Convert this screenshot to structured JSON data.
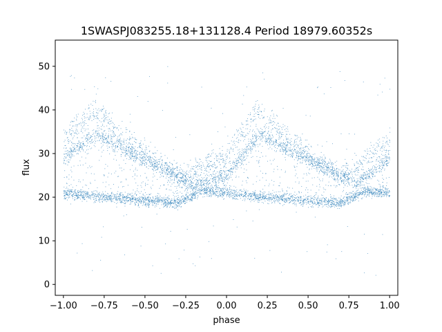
{
  "chart_data": {
    "type": "scatter",
    "title": "1SWASPJ083255.18+131128.4 Period 18979.60352s",
    "xlabel": "phase",
    "ylabel": "flux",
    "xlim": [
      -1.05,
      1.05
    ],
    "ylim": [
      -2.5,
      56
    ],
    "xticks": [
      -1.0,
      -0.75,
      -0.5,
      -0.25,
      0.0,
      0.25,
      0.5,
      0.75,
      1.0
    ],
    "xtick_labels": [
      "−1.00",
      "−0.75",
      "−0.50",
      "−0.25",
      "0.00",
      "0.25",
      "0.50",
      "0.75",
      "1.00"
    ],
    "yticks": [
      0,
      10,
      20,
      30,
      40,
      50
    ],
    "ytick_labels": [
      "0",
      "10",
      "20",
      "30",
      "40",
      "50"
    ],
    "grid": false,
    "marker_color": "#1f77b4",
    "series": [
      {
        "description_points": "phase-folded light curve, two cycles (phase -1 to 1)",
        "baseline_band": [
          {
            "x": -1.0,
            "y": 21.0
          },
          {
            "x": -0.75,
            "y": 20.0
          },
          {
            "x": -0.5,
            "y": 19.3
          },
          {
            "x": -0.3,
            "y": 18.8
          },
          {
            "x": -0.15,
            "y": 21.5
          },
          {
            "x": 0.0,
            "y": 21.0
          },
          {
            "x": 0.25,
            "y": 20.0
          },
          {
            "x": 0.5,
            "y": 19.3
          },
          {
            "x": 0.7,
            "y": 18.8
          },
          {
            "x": 0.85,
            "y": 21.5
          },
          {
            "x": 1.0,
            "y": 21.0
          }
        ],
        "hump_band": [
          {
            "x": -1.0,
            "y": 29.0
          },
          {
            "x": -0.8,
            "y": 34.5
          },
          {
            "x": -0.6,
            "y": 30.5
          },
          {
            "x": -0.4,
            "y": 27.0
          },
          {
            "x": -0.2,
            "y": 23.0
          },
          {
            "x": 0.0,
            "y": 25.0
          },
          {
            "x": 0.2,
            "y": 34.5
          },
          {
            "x": 0.4,
            "y": 30.5
          },
          {
            "x": 0.6,
            "y": 27.0
          },
          {
            "x": 0.8,
            "y": 23.0
          },
          {
            "x": 1.0,
            "y": 29.0
          }
        ],
        "peak_band": [
          {
            "x": -1.0,
            "y": 33.0
          },
          {
            "x": -0.82,
            "y": 40.0
          },
          {
            "x": -0.6,
            "y": 33.0
          },
          {
            "x": -0.3,
            "y": 25.0
          },
          {
            "x": 0.0,
            "y": 30.0
          },
          {
            "x": 0.18,
            "y": 40.0
          },
          {
            "x": 0.4,
            "y": 33.0
          },
          {
            "x": 0.7,
            "y": 25.0
          },
          {
            "x": 1.0,
            "y": 33.0
          }
        ]
      }
    ]
  }
}
